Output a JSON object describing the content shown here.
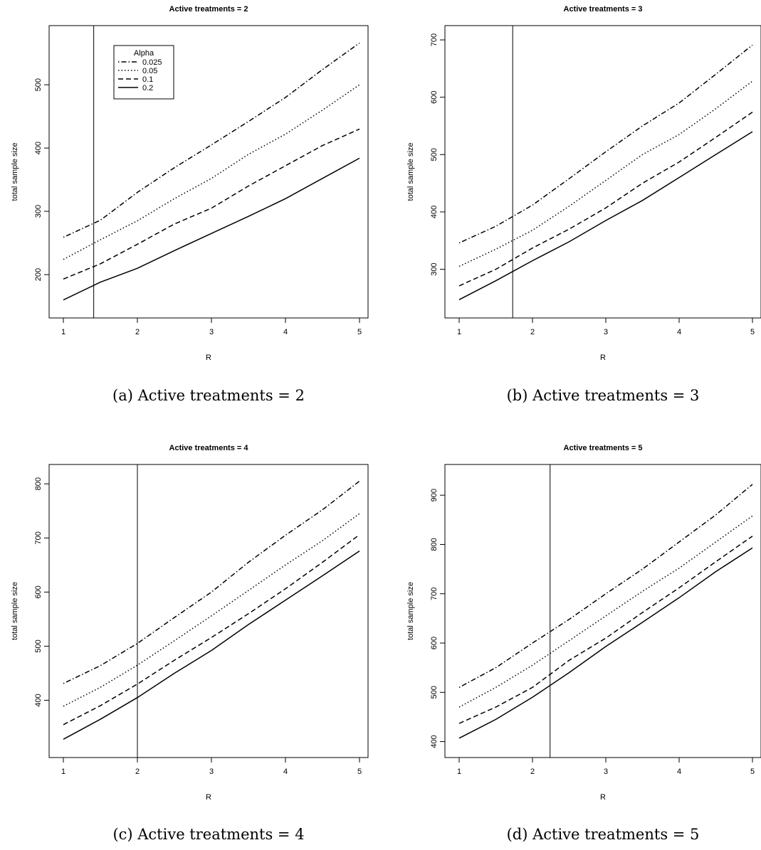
{
  "legend": {
    "title": "Alpha",
    "entries": [
      {
        "label": "0.025",
        "style": "dotdash"
      },
      {
        "label": "0.05",
        "style": "dotted"
      },
      {
        "label": "0.1",
        "style": "dashed"
      },
      {
        "label": "0.2",
        "style": "solid"
      }
    ]
  },
  "line_color": "#000000",
  "chart_data": [
    {
      "type": "line",
      "title": "Active treatments = 2",
      "caption": "(a)  Active treatments = 2",
      "xlabel": "R",
      "ylabel": "total sample size",
      "xlim": [
        1,
        5
      ],
      "ylim": [
        145,
        580
      ],
      "xticks": [
        1,
        2,
        3,
        4,
        5
      ],
      "yticks": [
        200,
        300,
        400,
        500
      ],
      "vline": 1.41,
      "legend_position": "top-left",
      "x": [
        1,
        1.5,
        2,
        2.5,
        3,
        3.5,
        4,
        4.5,
        5
      ],
      "series": [
        {
          "name": "0.025",
          "values": [
            259,
            286,
            330,
            369,
            405,
            442,
            480,
            524,
            566
          ]
        },
        {
          "name": "0.05",
          "values": [
            224,
            255,
            285,
            320,
            352,
            390,
            422,
            460,
            500
          ]
        },
        {
          "name": "0.1",
          "values": [
            193,
            217,
            248,
            280,
            305,
            340,
            372,
            404,
            430
          ]
        },
        {
          "name": "0.2",
          "values": [
            160,
            188,
            210,
            238,
            265,
            292,
            320,
            352,
            384
          ]
        }
      ]
    },
    {
      "type": "line",
      "title": "Active treatments = 3",
      "caption": "(b)  Active treatments = 3",
      "xlabel": "R",
      "ylabel": "total sample size",
      "xlim": [
        1,
        5
      ],
      "ylim": [
        230,
        710
      ],
      "xticks": [
        1,
        2,
        3,
        4,
        5
      ],
      "yticks": [
        300,
        400,
        500,
        600,
        700
      ],
      "vline": 1.73,
      "x": [
        1,
        1.5,
        2,
        2.5,
        3,
        3.5,
        4,
        4.5,
        5
      ],
      "series": [
        {
          "name": "0.025",
          "values": [
            346,
            375,
            412,
            458,
            505,
            550,
            590,
            640,
            691
          ]
        },
        {
          "name": "0.05",
          "values": [
            305,
            335,
            368,
            410,
            455,
            500,
            535,
            580,
            628
          ]
        },
        {
          "name": "0.1",
          "values": [
            271,
            300,
            337,
            370,
            407,
            450,
            487,
            530,
            574
          ]
        },
        {
          "name": "0.2",
          "values": [
            247,
            280,
            315,
            348,
            385,
            420,
            460,
            500,
            540
          ]
        }
      ]
    },
    {
      "type": "line",
      "title": "Active treatments = 4",
      "caption": "(c)  Active treatments = 4",
      "xlabel": "R",
      "ylabel": "total sample size",
      "xlim": [
        1,
        5
      ],
      "ylim": [
        310,
        820
      ],
      "xticks": [
        1,
        2,
        3,
        4,
        5
      ],
      "yticks": [
        400,
        500,
        600,
        700,
        800
      ],
      "vline": 2.0,
      "x": [
        1,
        1.5,
        2,
        2.5,
        3,
        3.5,
        4,
        4.5,
        5
      ],
      "series": [
        {
          "name": "0.025",
          "values": [
            431,
            464,
            505,
            553,
            600,
            655,
            705,
            752,
            805
          ]
        },
        {
          "name": "0.05",
          "values": [
            389,
            424,
            465,
            510,
            556,
            603,
            650,
            695,
            745
          ]
        },
        {
          "name": "0.1",
          "values": [
            355,
            390,
            430,
            474,
            516,
            560,
            606,
            655,
            706
          ]
        },
        {
          "name": "0.2",
          "values": [
            328,
            365,
            405,
            450,
            492,
            540,
            585,
            630,
            676
          ]
        }
      ]
    },
    {
      "type": "line",
      "title": "Active treatments = 5",
      "caption": "(d)  Active treatments = 5",
      "xlabel": "R",
      "ylabel": "total sample size",
      "xlim": [
        1,
        5
      ],
      "ylim": [
        385,
        945
      ],
      "xticks": [
        1,
        2,
        3,
        4,
        5
      ],
      "yticks": [
        400,
        500,
        600,
        700,
        800,
        900
      ],
      "vline": 2.24,
      "x": [
        1,
        1.5,
        2,
        2.5,
        3,
        3.5,
        4,
        4.5,
        5
      ],
      "series": [
        {
          "name": "0.025",
          "values": [
            510,
            550,
            600,
            648,
            700,
            750,
            805,
            860,
            922
          ]
        },
        {
          "name": "0.05",
          "values": [
            470,
            510,
            555,
            605,
            655,
            705,
            752,
            805,
            858
          ]
        },
        {
          "name": "0.1",
          "values": [
            437,
            470,
            510,
            565,
            610,
            662,
            712,
            765,
            817
          ]
        },
        {
          "name": "0.2",
          "values": [
            407,
            445,
            490,
            540,
            593,
            642,
            692,
            745,
            793
          ]
        }
      ]
    }
  ]
}
